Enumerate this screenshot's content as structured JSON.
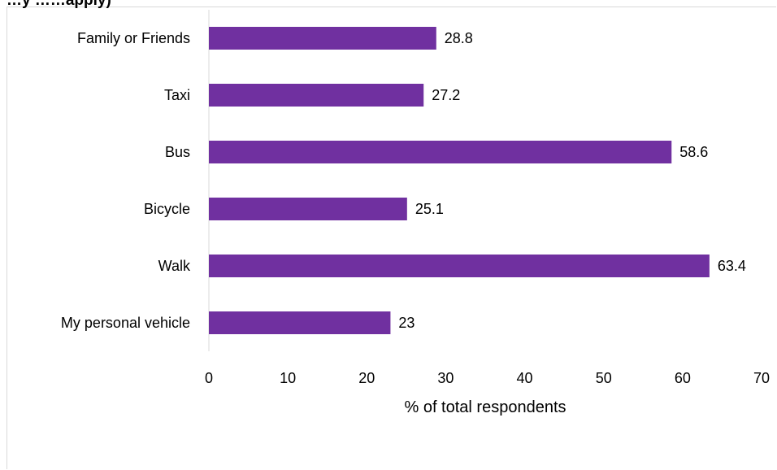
{
  "chart_data": {
    "type": "bar",
    "orientation": "horizontal",
    "clipped_title": "…y ……apply)",
    "categories": [
      "Family or Friends",
      "Taxi",
      "Bus",
      "Bicycle",
      "Walk",
      "My personal vehicle"
    ],
    "values": [
      28.8,
      27.2,
      58.6,
      25.1,
      63.4,
      23
    ],
    "value_labels": [
      "28.8",
      "27.2",
      "58.6",
      "25.1",
      "63.4",
      "23"
    ],
    "xlabel": "% of total respondents",
    "ylabel": "",
    "xlim": [
      0,
      70
    ],
    "xticks": [
      0,
      10,
      20,
      30,
      40,
      50,
      60,
      70
    ],
    "grid": false,
    "legend": "none",
    "bar_color": "#7030a0"
  }
}
